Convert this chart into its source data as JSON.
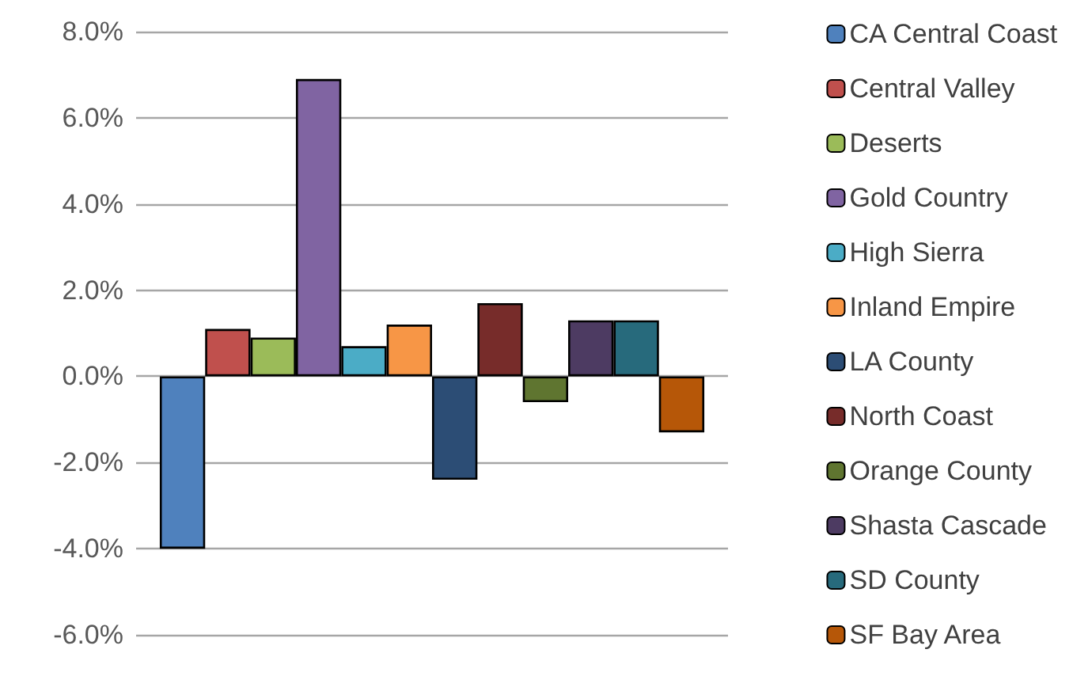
{
  "chart_data": {
    "type": "bar",
    "categories": [
      null
    ],
    "series": [
      {
        "name": "CA Central Coast",
        "color": "#4f81bd",
        "values": [
          -4.0
        ]
      },
      {
        "name": "Central Valley",
        "color": "#c0504d",
        "values": [
          1.1
        ]
      },
      {
        "name": "Deserts",
        "color": "#9bbb59",
        "values": [
          0.9
        ]
      },
      {
        "name": "Gold Country",
        "color": "#8064a2",
        "values": [
          6.9
        ]
      },
      {
        "name": "High Sierra",
        "color": "#4bacc6",
        "values": [
          0.7
        ]
      },
      {
        "name": "Inland Empire",
        "color": "#f79646",
        "values": [
          1.2
        ]
      },
      {
        "name": "LA County",
        "color": "#2c4d75",
        "values": [
          -2.4
        ]
      },
      {
        "name": "North Coast",
        "color": "#772c2a",
        "values": [
          1.7
        ]
      },
      {
        "name": "Orange County",
        "color": "#5f7530",
        "values": [
          -0.6
        ]
      },
      {
        "name": "Shasta Cascade",
        "color": "#4d3b62",
        "values": [
          1.3
        ]
      },
      {
        "name": "SD County",
        "color": "#276a7c",
        "values": [
          1.3
        ]
      },
      {
        "name": "SF Bay Area",
        "color": "#b65708",
        "values": [
          -1.3
        ]
      }
    ],
    "ylim": [
      -6,
      8
    ],
    "yticks": [
      {
        "value": -6,
        "label": "-6.0%"
      },
      {
        "value": -4,
        "label": "-4.0%"
      },
      {
        "value": -2,
        "label": "-2.0%"
      },
      {
        "value": 0,
        "label": "0.0%"
      },
      {
        "value": 2,
        "label": "2.0%"
      },
      {
        "value": 4,
        "label": "4.0%"
      },
      {
        "value": 6,
        "label": "6.0%"
      },
      {
        "value": 8,
        "label": "8.0%"
      }
    ],
    "grid": "y",
    "legend": "right"
  }
}
